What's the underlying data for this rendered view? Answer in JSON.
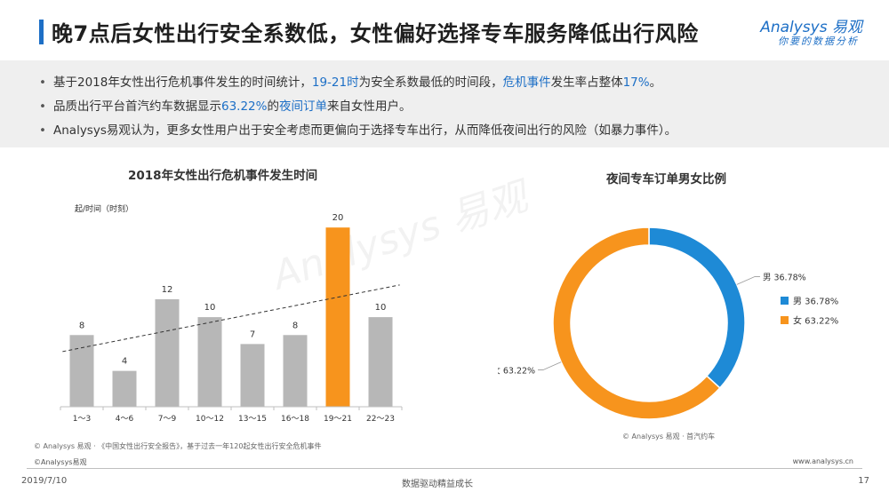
{
  "header": {
    "title": "晚7点后女性出行安全系数低，女性偏好选择专车服务降低出行风险",
    "accent_color": "#1d6fc6",
    "logo_main": "Analysys 易观",
    "logo_sub": "你要的数据分析"
  },
  "bullets": [
    {
      "parts": [
        {
          "text": "基于2018年女性出行危机事件发生的时间统计，",
          "hl": false
        },
        {
          "text": "19-21时",
          "hl": true
        },
        {
          "text": "为安全系数最低的时间段，",
          "hl": false
        },
        {
          "text": "危机事件",
          "hl": true
        },
        {
          "text": "发生率占整体",
          "hl": false
        },
        {
          "text": "17%",
          "hl": true
        },
        {
          "text": "。",
          "hl": false
        }
      ]
    },
    {
      "parts": [
        {
          "text": "品质出行平台首汽约车数据显示",
          "hl": false
        },
        {
          "text": "63.22%",
          "hl": true
        },
        {
          "text": "的",
          "hl": false
        },
        {
          "text": "夜间订单",
          "hl": true
        },
        {
          "text": "来自女性用户。",
          "hl": false
        }
      ]
    },
    {
      "parts": [
        {
          "text": "Analysys易观认为，更多女性用户出于安全考虑而更偏向于选择专车出行，从而降低夜间出行的风险（如暴力事件）。",
          "hl": false
        }
      ]
    }
  ],
  "watermark": "Analysys 易观",
  "chart_data": [
    {
      "type": "bar",
      "title": "2018年女性出行危机事件发生时间",
      "ylabel": "起/时间（时刻）",
      "categories": [
        "1～3",
        "4～6",
        "7～9",
        "10～12",
        "13～15",
        "16～18",
        "19～21",
        "22～23"
      ],
      "values": [
        8,
        4,
        12,
        10,
        7,
        8,
        20,
        10
      ],
      "highlight_index": 6,
      "colors": {
        "bar": "#b7b7b7",
        "highlight": "#f7941d",
        "trend": "#333333"
      },
      "trendline": true,
      "ylim": [
        0,
        22
      ],
      "source": "© Analysys 易观 · 《中国女性出行安全报告》，基于过去一年120起女性出行安全危机事件"
    },
    {
      "type": "pie",
      "title": "夜间专车订单男女比例",
      "donut": true,
      "labels": [
        "男",
        "女"
      ],
      "values": [
        36.78,
        63.22
      ],
      "value_labels": [
        "36.78%",
        "63.22%"
      ],
      "colors": [
        "#1e8ad6",
        "#f7941d"
      ],
      "legend_position": "right",
      "source": "© Analysys 易观 · 首汽约车"
    }
  ],
  "footer": {
    "copyright": "©Analysys易观",
    "website": "www.analysys.cn",
    "date": "2019/7/10",
    "slogan": "数据驱动精益成长",
    "page": "17"
  }
}
